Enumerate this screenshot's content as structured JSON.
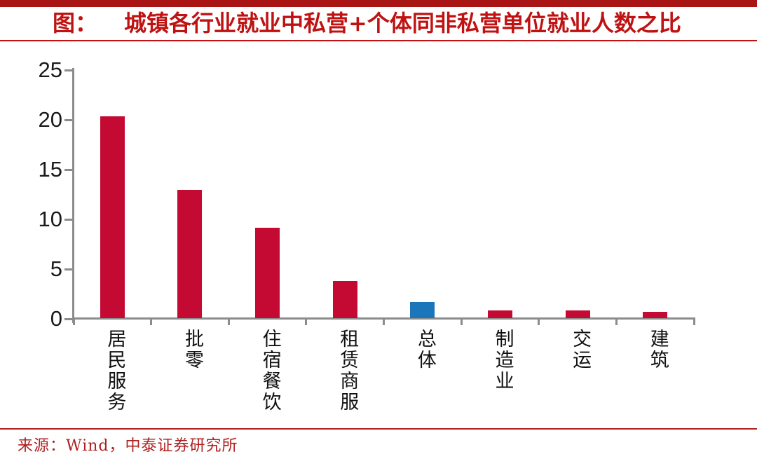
{
  "header": {
    "tag": "图：",
    "title": "城镇各行业就业中私营+个体同非私营单位就业人数之比"
  },
  "chart_data": {
    "type": "bar",
    "title": "城镇各行业就业中私营+个体同非私营单位就业人数之比",
    "categories": [
      "居民服务",
      "批零",
      "住宿餐饮",
      "租赁商服",
      "总体",
      "制造业",
      "交运",
      "建筑"
    ],
    "values": [
      20.3,
      12.9,
      9.1,
      3.7,
      1.6,
      0.8,
      0.8,
      0.6
    ],
    "bar_colors": [
      "#c40a33",
      "#c40a33",
      "#c40a33",
      "#c40a33",
      "#1b75bb",
      "#c40a33",
      "#c40a33",
      "#c40a33"
    ],
    "highlight_category": "总体",
    "highlight_color": "#1b75bb",
    "default_bar_color": "#c40a33",
    "ylim": [
      0,
      25
    ],
    "yticks": [
      0,
      5,
      10,
      15,
      20,
      25
    ],
    "xlabel": "",
    "ylabel": "",
    "grid": false,
    "legend": null,
    "axis_color": "#8c8c8c",
    "tick_label_color": "#1a1a1a"
  },
  "footer": {
    "source": "来源：Wind，中泰证券研究所"
  },
  "colors": {
    "top_accent_bar": "#a91414",
    "title_text": "#c01212",
    "title_divider": "#c01212",
    "footer_divider": "#b02020",
    "source_text": "#b02020"
  }
}
